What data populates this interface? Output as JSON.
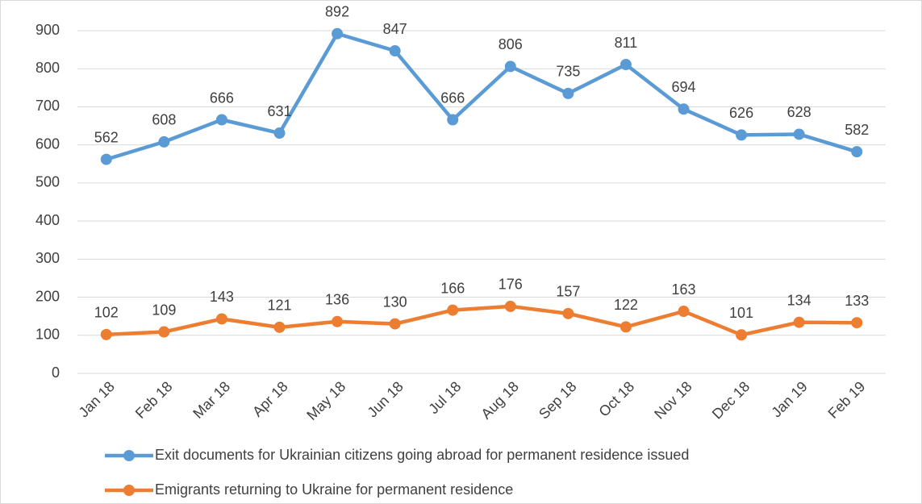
{
  "chart_data": {
    "type": "line",
    "categories": [
      "Jan 18",
      "Feb 18",
      "Mar 18",
      "Apr 18",
      "May 18",
      "Jun 18",
      "Jul 18",
      "Aug 18",
      "Sep 18",
      "Oct 18",
      "Nov 18",
      "Dec 18",
      "Jan 19",
      "Feb 19"
    ],
    "series": [
      {
        "name": "Exit documents for Ukrainian citizens going abroad for permanent residence issued",
        "color": "#5b9bd5",
        "values": [
          562,
          608,
          666,
          631,
          892,
          847,
          666,
          806,
          735,
          811,
          694,
          626,
          628,
          582
        ]
      },
      {
        "name": "Emigrants returning to Ukraine for permanent residence",
        "color": "#ed7d31",
        "values": [
          102,
          109,
          143,
          121,
          136,
          130,
          166,
          176,
          157,
          122,
          163,
          101,
          134,
          133
        ]
      }
    ],
    "ylim": [
      0,
      900
    ],
    "yticks": [
      0,
      100,
      200,
      300,
      400,
      500,
      600,
      700,
      800,
      900
    ],
    "grid": true,
    "legend": "bottom"
  }
}
